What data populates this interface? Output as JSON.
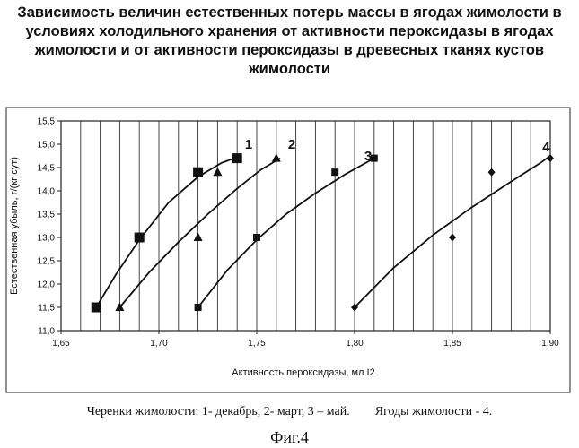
{
  "chart_data": {
    "type": "scatter",
    "title_lines": [
      "Зависимость величин естественных потерь массы в ягодах  жимолости в",
      "условиях холодильного хранения от активности пероксидазы в ягодах",
      "жимолости и от активности пероксидазы в древесных тканях кустов",
      "жимолости"
    ],
    "xlabel": "Активность пероксидазы, мл I2",
    "ylabel": "Естественная убыль, г/(кг сут)",
    "xlim": [
      1.65,
      1.9
    ],
    "ylim": [
      11.0,
      15.5
    ],
    "x_ticks": [
      "1,65",
      "1,70",
      "1,75",
      "1,80",
      "1,85",
      "1,90"
    ],
    "y_ticks": [
      "11,0",
      "11,5",
      "12,0",
      "12,5",
      "13,0",
      "13,5",
      "14,0",
      "14,5",
      "15,0",
      "15,5"
    ],
    "grid": "vertical",
    "series": [
      {
        "name": "1",
        "marker": "square-large",
        "points": [
          [
            1.668,
            11.5
          ],
          [
            1.69,
            13.0
          ],
          [
            1.72,
            14.4
          ],
          [
            1.74,
            14.7
          ]
        ],
        "trend": [
          [
            1.668,
            11.5
          ],
          [
            1.678,
            12.2
          ],
          [
            1.69,
            12.95
          ],
          [
            1.705,
            13.75
          ],
          [
            1.72,
            14.3
          ],
          [
            1.732,
            14.6
          ],
          [
            1.742,
            14.75
          ]
        ]
      },
      {
        "name": "2",
        "marker": "triangle",
        "points": [
          [
            1.68,
            11.5
          ],
          [
            1.72,
            13.0
          ],
          [
            1.73,
            14.4
          ],
          [
            1.76,
            14.7
          ]
        ],
        "trend": [
          [
            1.68,
            11.5
          ],
          [
            1.695,
            12.25
          ],
          [
            1.71,
            12.9
          ],
          [
            1.725,
            13.5
          ],
          [
            1.74,
            14.05
          ],
          [
            1.752,
            14.45
          ],
          [
            1.762,
            14.7
          ]
        ]
      },
      {
        "name": "3",
        "marker": "square-small",
        "points": [
          [
            1.72,
            11.5
          ],
          [
            1.75,
            13.0
          ],
          [
            1.79,
            14.4
          ],
          [
            1.81,
            14.7
          ]
        ],
        "trend": [
          [
            1.72,
            11.5
          ],
          [
            1.735,
            12.3
          ],
          [
            1.75,
            12.95
          ],
          [
            1.765,
            13.5
          ],
          [
            1.78,
            13.95
          ],
          [
            1.795,
            14.35
          ],
          [
            1.81,
            14.7
          ]
        ]
      },
      {
        "name": "4",
        "marker": "diamond",
        "points": [
          [
            1.8,
            11.5
          ],
          [
            1.85,
            13.0
          ],
          [
            1.87,
            14.4
          ],
          [
            1.9,
            14.7
          ]
        ],
        "trend": [
          [
            1.8,
            11.5
          ],
          [
            1.82,
            12.35
          ],
          [
            1.84,
            13.05
          ],
          [
            1.86,
            13.65
          ],
          [
            1.88,
            14.2
          ],
          [
            1.895,
            14.6
          ],
          [
            1.9,
            14.75
          ]
        ]
      }
    ]
  },
  "caption": {
    "cuttings": "Черенки жимолости: 1- декабрь, 2- март, 3 – май.",
    "berries": "Ягоды жимолости - 4."
  },
  "figure_label": "Фиг.4"
}
